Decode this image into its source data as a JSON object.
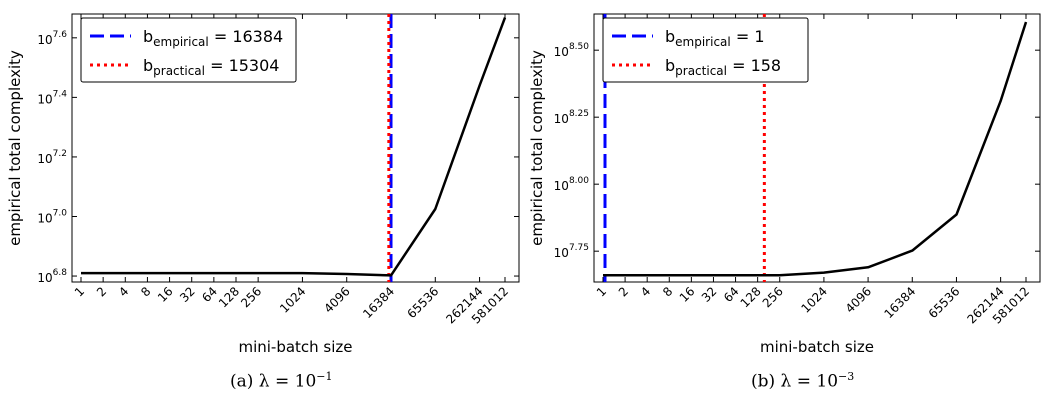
{
  "chart_data": [
    {
      "type": "line",
      "xscale": "log2",
      "yscale": "log10",
      "xlabel": "mini-batch size",
      "ylabel": "empirical total complexity",
      "xlim": [
        1,
        581012
      ],
      "ylim_log10": [
        6.78,
        7.68
      ],
      "xtick_labels": [
        "1",
        "2",
        "4",
        "8",
        "16",
        "32",
        "64",
        "128",
        "256",
        "1024",
        "4096",
        "16384",
        "65536",
        "262144",
        "581012"
      ],
      "ytick_values": [
        "6.8",
        "7.0",
        "7.2",
        "7.4",
        "7.6"
      ],
      "grid": false,
      "legend_position": "top-left",
      "series": [
        {
          "x": [
            1,
            2,
            4,
            8,
            16,
            32,
            64,
            128,
            256,
            1024,
            4096,
            16384,
            65536,
            262144,
            581012
          ],
          "log10_y": [
            6.81,
            6.81,
            6.81,
            6.81,
            6.81,
            6.81,
            6.81,
            6.81,
            6.81,
            6.81,
            6.807,
            6.802,
            7.025,
            7.44,
            7.668
          ],
          "color": "#000000",
          "style": "solid"
        }
      ],
      "vlines": [
        {
          "name_base": "b",
          "name_sub": "empirical",
          "value": "16384",
          "x": 16384,
          "color": "#0000ff",
          "style": "dashed"
        },
        {
          "name_base": "b",
          "name_sub": "practical",
          "value": "15304",
          "x": 15304,
          "color": "#ff0000",
          "style": "dotted"
        }
      ],
      "caption": {
        "prefix": "(a) λ = 10",
        "exp": "−1"
      }
    },
    {
      "type": "line",
      "xscale": "log2",
      "yscale": "log10",
      "xlabel": "mini-batch size",
      "ylabel": "empirical total complexity",
      "xlim": [
        1,
        581012
      ],
      "ylim_log10": [
        7.635,
        8.635
      ],
      "xtick_labels": [
        "1",
        "2",
        "4",
        "8",
        "16",
        "32",
        "64",
        "128",
        "256",
        "1024",
        "4096",
        "16384",
        "65536",
        "262144",
        "581012"
      ],
      "ytick_values": [
        "7.75",
        "8.00",
        "8.25",
        "8.50"
      ],
      "grid": false,
      "legend_position": "top-left",
      "series": [
        {
          "x": [
            1,
            2,
            4,
            8,
            16,
            32,
            64,
            128,
            256,
            1024,
            4096,
            16384,
            65536,
            262144,
            581012
          ],
          "log10_y": [
            7.66,
            7.66,
            7.66,
            7.66,
            7.66,
            7.66,
            7.66,
            7.66,
            7.66,
            7.67,
            7.69,
            7.752,
            7.887,
            8.31,
            8.605
          ],
          "color": "#000000",
          "style": "solid"
        }
      ],
      "vlines": [
        {
          "name_base": "b",
          "name_sub": "empirical",
          "value": "1",
          "x": 1,
          "color": "#0000ff",
          "style": "dashed"
        },
        {
          "name_base": "b",
          "name_sub": "practical",
          "value": "158",
          "x": 158,
          "color": "#ff0000",
          "style": "dotted"
        }
      ],
      "caption": {
        "prefix": "(b) λ = 10",
        "exp": "−3"
      }
    }
  ]
}
